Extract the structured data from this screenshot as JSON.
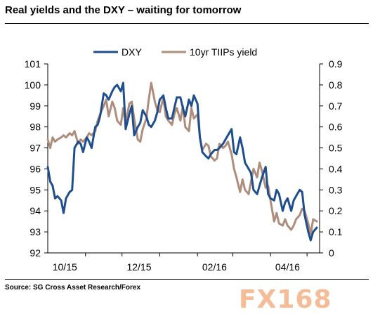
{
  "title": "Real yields and the DXY – waiting for tomorrow",
  "source": "Source: SG Cross Asset Research/Forex",
  "watermark": "FX168",
  "colors": {
    "dxy": "#1f4e8f",
    "tips": "#ae8d7d"
  },
  "chart_data": {
    "type": "line",
    "x_ticks": [
      "10/15",
      "12/15",
      "02/16",
      "04/16"
    ],
    "y_left_ticks": [
      "92",
      "93",
      "94",
      "95",
      "96",
      "97",
      "98",
      "99",
      "100",
      "101"
    ],
    "y_right_ticks": [
      "0",
      "0.1",
      "0.2",
      "0.3",
      "0.4",
      "0.5",
      "0.6",
      "0.7",
      "0.8",
      "0.9"
    ],
    "ylim_left": [
      92,
      101
    ],
    "ylim_right": [
      0,
      0.9
    ],
    "legend": "top-center",
    "grid": false,
    "series": [
      {
        "name": "DXY",
        "axis": "left",
        "x": [
          "2015-10-01",
          "2015-10-03",
          "2015-10-05",
          "2015-10-07",
          "2015-10-09",
          "2015-10-12",
          "2015-10-14",
          "2015-10-16",
          "2015-10-19",
          "2015-10-21",
          "2015-10-23",
          "2015-10-26",
          "2015-10-28",
          "2015-10-30",
          "2015-11-02",
          "2015-11-04",
          "2015-11-06",
          "2015-11-09",
          "2015-11-11",
          "2015-11-13",
          "2015-11-16",
          "2015-11-18",
          "2015-11-20",
          "2015-11-23",
          "2015-11-25",
          "2015-11-27",
          "2015-11-30",
          "2015-12-02",
          "2015-12-04",
          "2015-12-07",
          "2015-12-09",
          "2015-12-11",
          "2015-12-14",
          "2015-12-16",
          "2015-12-18",
          "2015-12-21",
          "2015-12-23",
          "2015-12-25",
          "2015-12-28",
          "2015-12-30",
          "2016-01-01",
          "2016-01-04",
          "2016-01-06",
          "2016-01-08",
          "2016-01-11",
          "2016-01-13",
          "2016-01-15",
          "2016-01-18",
          "2016-01-20",
          "2016-01-22",
          "2016-01-25",
          "2016-01-27",
          "2016-01-29",
          "2016-02-01",
          "2016-02-03",
          "2016-02-05",
          "2016-02-08",
          "2016-02-10",
          "2016-02-12",
          "2016-02-15",
          "2016-02-17",
          "2016-02-19",
          "2016-02-22",
          "2016-02-24",
          "2016-02-26",
          "2016-02-29",
          "2016-03-02",
          "2016-03-04",
          "2016-03-07",
          "2016-03-09",
          "2016-03-11",
          "2016-03-14",
          "2016-03-16",
          "2016-03-18",
          "2016-03-21",
          "2016-03-23",
          "2016-03-25",
          "2016-03-28",
          "2016-03-30",
          "2016-04-01",
          "2016-04-04",
          "2016-04-06",
          "2016-04-08",
          "2016-04-11",
          "2016-04-13",
          "2016-04-15",
          "2016-04-18",
          "2016-04-20",
          "2016-04-22",
          "2016-04-25",
          "2016-04-27",
          "2016-04-29",
          "2016-05-02",
          "2016-05-04",
          "2016-05-06",
          "2016-05-09"
        ],
        "values": [
          96.1,
          95.4,
          95.2,
          94.6,
          94.7,
          94.5,
          93.9,
          94.6,
          94.9,
          95.0,
          97.0,
          97.3,
          97.2,
          96.8,
          97.5,
          97.3,
          97.0,
          98.0,
          98.1,
          98.5,
          99.6,
          99.5,
          99.3,
          99.7,
          99.9,
          100.0,
          99.7,
          100.1,
          97.9,
          98.6,
          99.0,
          97.6,
          98.0,
          98.2,
          98.8,
          98.5,
          98.1,
          98.0,
          98.3,
          98.7,
          99.3,
          99.5,
          98.9,
          98.4,
          98.4,
          98.9,
          99.4,
          99.4,
          98.9,
          98.5,
          99.3,
          99.0,
          99.5,
          99.1,
          97.5,
          96.8,
          96.6,
          96.5,
          96.7,
          96.9,
          96.9,
          97.0,
          97.2,
          97.4,
          97.6,
          97.9,
          96.8,
          96.7,
          97.5,
          97.0,
          96.3,
          96.0,
          95.8,
          95.0,
          94.8,
          95.2,
          95.6,
          96.1,
          94.8,
          94.6,
          94.5,
          95.0,
          94.8,
          94.0,
          94.4,
          94.6,
          94.0,
          94.5,
          94.7,
          95.0,
          94.9,
          93.8,
          93.0,
          92.6,
          93.0,
          93.2
        ]
      },
      {
        "name": "10yr TIIPs yield",
        "axis": "right",
        "x": [
          "2015-10-01",
          "2015-10-03",
          "2015-10-05",
          "2015-10-07",
          "2015-10-09",
          "2015-10-12",
          "2015-10-14",
          "2015-10-16",
          "2015-10-19",
          "2015-10-21",
          "2015-10-23",
          "2015-10-26",
          "2015-10-28",
          "2015-10-30",
          "2015-11-02",
          "2015-11-04",
          "2015-11-06",
          "2015-11-09",
          "2015-11-11",
          "2015-11-13",
          "2015-11-16",
          "2015-11-18",
          "2015-11-20",
          "2015-11-23",
          "2015-11-25",
          "2015-11-27",
          "2015-11-30",
          "2015-12-02",
          "2015-12-04",
          "2015-12-07",
          "2015-12-09",
          "2015-12-11",
          "2015-12-14",
          "2015-12-16",
          "2015-12-18",
          "2015-12-21",
          "2015-12-23",
          "2015-12-25",
          "2015-12-28",
          "2015-12-30",
          "2016-01-01",
          "2016-01-04",
          "2016-01-06",
          "2016-01-08",
          "2016-01-11",
          "2016-01-13",
          "2016-01-15",
          "2016-01-18",
          "2016-01-20",
          "2016-01-22",
          "2016-01-25",
          "2016-01-27",
          "2016-01-29",
          "2016-02-01",
          "2016-02-03",
          "2016-02-05",
          "2016-02-08",
          "2016-02-10",
          "2016-02-12",
          "2016-02-15",
          "2016-02-17",
          "2016-02-19",
          "2016-02-22",
          "2016-02-24",
          "2016-02-26",
          "2016-02-29",
          "2016-03-02",
          "2016-03-04",
          "2016-03-07",
          "2016-03-09",
          "2016-03-11",
          "2016-03-14",
          "2016-03-16",
          "2016-03-18",
          "2016-03-21",
          "2016-03-23",
          "2016-03-25",
          "2016-03-28",
          "2016-03-30",
          "2016-04-01",
          "2016-04-04",
          "2016-04-06",
          "2016-04-08",
          "2016-04-11",
          "2016-04-13",
          "2016-04-15",
          "2016-04-18",
          "2016-04-20",
          "2016-04-22",
          "2016-04-25",
          "2016-04-27",
          "2016-04-29",
          "2016-05-02",
          "2016-05-04",
          "2016-05-06",
          "2016-05-09"
        ],
        "values": [
          0.54,
          0.5,
          0.55,
          0.53,
          0.54,
          0.55,
          0.56,
          0.55,
          0.57,
          0.56,
          0.58,
          0.52,
          0.54,
          0.53,
          0.55,
          0.57,
          0.56,
          0.58,
          0.63,
          0.66,
          0.7,
          0.73,
          0.65,
          0.72,
          0.69,
          0.63,
          0.61,
          0.69,
          0.62,
          0.71,
          0.72,
          0.64,
          0.54,
          0.53,
          0.59,
          0.64,
          0.73,
          0.81,
          0.72,
          0.68,
          0.67,
          0.74,
          0.65,
          0.63,
          0.61,
          0.66,
          0.69,
          0.63,
          0.7,
          0.6,
          0.58,
          0.69,
          0.64,
          0.66,
          0.55,
          0.49,
          0.52,
          0.51,
          0.46,
          0.44,
          0.45,
          0.52,
          0.5,
          0.51,
          0.53,
          0.47,
          0.4,
          0.36,
          0.29,
          0.35,
          0.3,
          0.28,
          0.34,
          0.4,
          0.36,
          0.43,
          0.39,
          0.31,
          0.32,
          0.25,
          0.15,
          0.19,
          0.14,
          0.13,
          0.16,
          0.13,
          0.11,
          0.13,
          0.16,
          0.18,
          0.21,
          0.2,
          0.14,
          0.09,
          0.16,
          0.15
        ]
      }
    ]
  }
}
